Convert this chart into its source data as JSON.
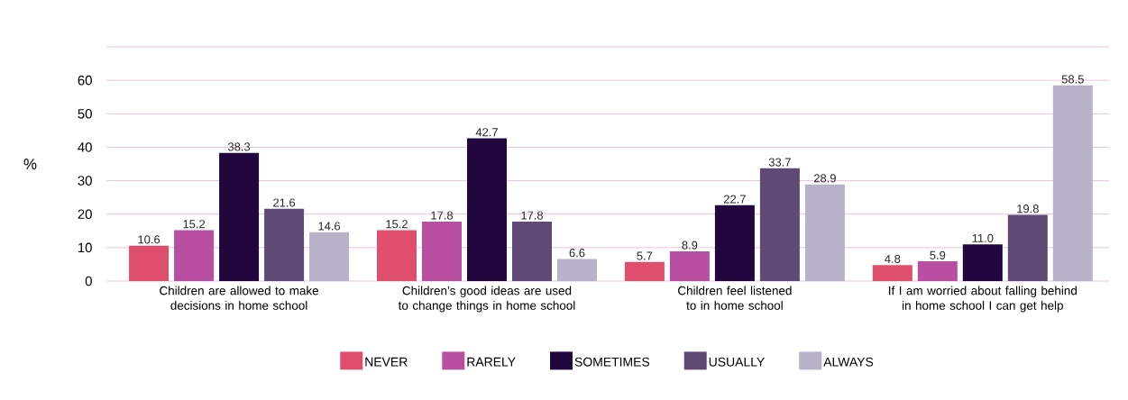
{
  "chart_data": {
    "type": "bar",
    "ylabel": "%",
    "categories": [
      "Children are allowed to make decisions in home school",
      "Children’s good ideas are used to change things in home school",
      "Children feel listened to in home school",
      "If I am worried about falling behind in home school I can get help"
    ],
    "series": [
      {
        "name": "NEVER",
        "color": "#e04e6e",
        "values": [
          10.6,
          15.2,
          5.7,
          4.8
        ],
        "value_labels": [
          "10.6",
          "15.2",
          "5.7",
          "4.8"
        ]
      },
      {
        "name": "RARELY",
        "color": "#b84fa0",
        "values": [
          15.2,
          17.8,
          8.9,
          5.9
        ],
        "value_labels": [
          "15.2",
          "17.8",
          "8.9",
          "5.9"
        ]
      },
      {
        "name": "SOMETIMES",
        "color": "#22063e",
        "values": [
          38.3,
          42.7,
          22.7,
          11.0
        ],
        "value_labels": [
          "38.3",
          "42.7",
          "22.7",
          "11.0"
        ]
      },
      {
        "name": "USUALLY",
        "color": "#5e4a75",
        "values": [
          21.6,
          17.8,
          33.7,
          19.8
        ],
        "value_labels": [
          "21.6",
          "17.8",
          "33.7",
          "19.8"
        ]
      },
      {
        "name": "ALWAYS",
        "color": "#b8b2c8",
        "values": [
          14.6,
          6.6,
          28.9,
          58.5
        ],
        "value_labels": [
          "14.6",
          "6.6",
          "28.9",
          "58.5"
        ]
      }
    ],
    "ylim": [
      0,
      70
    ],
    "yticks": [
      0,
      10,
      20,
      30,
      40,
      50,
      60,
      {
        "value": 70,
        "label": null
      }
    ],
    "grid": "y",
    "legend": "bottom"
  }
}
